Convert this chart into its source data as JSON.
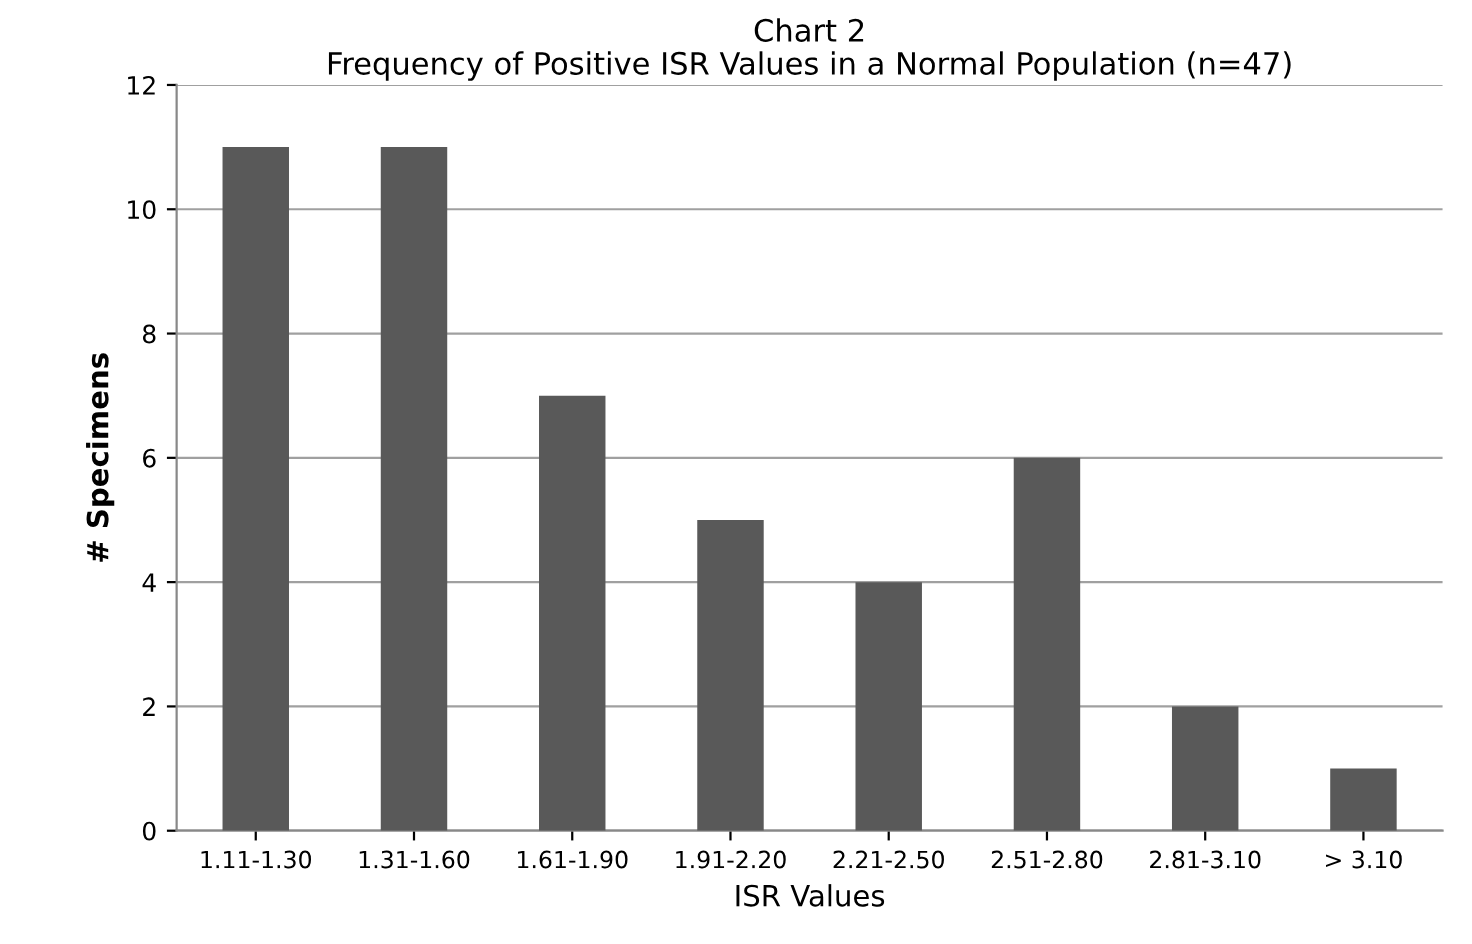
{
  "chart_data": {
    "type": "bar",
    "title": "Chart 2",
    "subtitle": "Frequency of Positive ISR Values in a Normal Population (n=47)",
    "xlabel": "ISR Values",
    "ylabel": "# Specimens",
    "categories": [
      "1.11-1.30",
      "1.31-1.60",
      "1.61-1.90",
      "1.91-2.20",
      "2.21-2.50",
      "2.51-2.80",
      "2.81-3.10",
      "> 3.10"
    ],
    "values": [
      11,
      11,
      7,
      5,
      4,
      6,
      2,
      1
    ],
    "color": "#595959",
    "ylim": [
      0,
      12
    ],
    "yticks": [
      0,
      2,
      4,
      6,
      8,
      10,
      12
    ],
    "grid": "y"
  }
}
